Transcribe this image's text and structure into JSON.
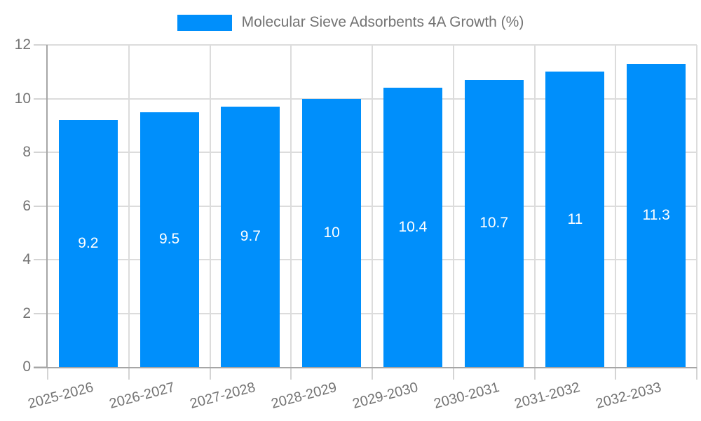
{
  "chart_data": {
    "type": "bar",
    "title": "Molecular Sieve Adsorbents 4A Growth (%)",
    "categories": [
      "2025-2026",
      "2026-2027",
      "2027-2028",
      "2028-2029",
      "2029-2030",
      "2030-2031",
      "2031-2032",
      "2032-2033"
    ],
    "values": [
      9.2,
      9.5,
      9.7,
      10,
      10.4,
      10.7,
      11,
      11.3
    ],
    "data_labels": [
      "9.2",
      "9.5",
      "9.7",
      "10",
      "10.4",
      "10.7",
      "11",
      "11.3"
    ],
    "xlabel": "",
    "ylabel": "",
    "ylim": [
      0,
      12
    ],
    "yticks": [
      0,
      2,
      4,
      6,
      8,
      10,
      12
    ],
    "grid": true,
    "legend_position": "top-center",
    "legend_label": "Molecular Sieve Adsorbents 4A Growth (%)",
    "colors": {
      "bar": "#008FFB",
      "data_label": "#FFFFFF",
      "axis_text": "#737373",
      "grid_line": "#DCDCDC",
      "axis_line": "#A6A6A6",
      "tick": "#D4D4D4",
      "background": "#FFFFFF"
    }
  }
}
